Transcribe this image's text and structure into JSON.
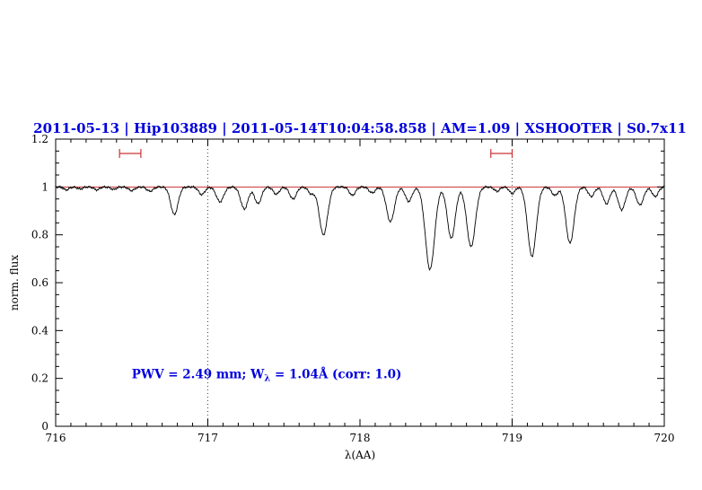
{
  "colors": {
    "accent_blue": "#0000dd",
    "line_red": "#cc3333",
    "spectrum_black": "#000000",
    "guide_gray": "#444444"
  },
  "chart_data": {
    "type": "line",
    "title": "2011-05-13 | Hip103889 | 2011-05-14T10:04:58.858 | AM=1.09 | XSHOOTER | S0.7x11",
    "xlabel": "λ(AA)",
    "ylabel": "norm. flux",
    "xlim": [
      716,
      720
    ],
    "ylim": [
      0,
      1.2
    ],
    "x_major_ticks": [
      716,
      717,
      718,
      719,
      720
    ],
    "x_tick_labels": [
      "716",
      "717",
      "718",
      "719",
      "720"
    ],
    "x_minor_step": 0.1,
    "y_major_ticks": [
      0,
      0.2,
      0.4,
      0.6,
      0.8,
      1.0,
      1.2
    ],
    "y_tick_labels": [
      "0",
      "0.2",
      "0.4",
      "0.6",
      "0.8",
      "1",
      "1.2"
    ],
    "y_minor_step": 0.05,
    "continuum_line": {
      "y": 1.0,
      "color": "#cc3333"
    },
    "guide_lines": {
      "x": [
        717,
        719
      ],
      "style": "dotted",
      "color": "#444444"
    },
    "range_markers": [
      {
        "x_start": 716.42,
        "x_end": 716.56,
        "y": 1.14,
        "color": "#cc3333"
      },
      {
        "x_start": 718.86,
        "x_end": 719.0,
        "y": 1.14,
        "color": "#cc3333"
      }
    ],
    "series": [
      {
        "name": "telluric absorption spectrum",
        "color": "#000000",
        "continuum": 1.0,
        "absorption_lines": [
          {
            "center": 716.07,
            "depth": 0.012,
            "sigma": 0.018
          },
          {
            "center": 716.16,
            "depth": 0.008,
            "sigma": 0.018
          },
          {
            "center": 716.27,
            "depth": 0.012,
            "sigma": 0.018
          },
          {
            "center": 716.38,
            "depth": 0.01,
            "sigma": 0.018
          },
          {
            "center": 716.5,
            "depth": 0.015,
            "sigma": 0.02
          },
          {
            "center": 716.62,
            "depth": 0.018,
            "sigma": 0.02
          },
          {
            "center": 716.78,
            "depth": 0.115,
            "sigma": 0.024
          },
          {
            "center": 716.96,
            "depth": 0.032,
            "sigma": 0.02
          },
          {
            "center": 717.08,
            "depth": 0.062,
            "sigma": 0.024
          },
          {
            "center": 717.24,
            "depth": 0.092,
            "sigma": 0.024
          },
          {
            "center": 717.33,
            "depth": 0.07,
            "sigma": 0.022
          },
          {
            "center": 717.45,
            "depth": 0.03,
            "sigma": 0.02
          },
          {
            "center": 717.56,
            "depth": 0.05,
            "sigma": 0.022
          },
          {
            "center": 717.68,
            "depth": 0.028,
            "sigma": 0.02
          },
          {
            "center": 717.76,
            "depth": 0.2,
            "sigma": 0.027
          },
          {
            "center": 717.95,
            "depth": 0.035,
            "sigma": 0.02
          },
          {
            "center": 718.08,
            "depth": 0.025,
            "sigma": 0.02
          },
          {
            "center": 718.2,
            "depth": 0.145,
            "sigma": 0.026
          },
          {
            "center": 718.32,
            "depth": 0.06,
            "sigma": 0.022
          },
          {
            "center": 718.46,
            "depth": 0.345,
            "sigma": 0.03
          },
          {
            "center": 718.6,
            "depth": 0.215,
            "sigma": 0.026
          },
          {
            "center": 718.73,
            "depth": 0.25,
            "sigma": 0.028
          },
          {
            "center": 718.9,
            "depth": 0.018,
            "sigma": 0.018
          },
          {
            "center": 719.0,
            "depth": 0.028,
            "sigma": 0.018
          },
          {
            "center": 719.13,
            "depth": 0.29,
            "sigma": 0.028
          },
          {
            "center": 719.28,
            "depth": 0.035,
            "sigma": 0.02
          },
          {
            "center": 719.38,
            "depth": 0.235,
            "sigma": 0.027
          },
          {
            "center": 719.52,
            "depth": 0.04,
            "sigma": 0.02
          },
          {
            "center": 719.62,
            "depth": 0.07,
            "sigma": 0.022
          },
          {
            "center": 719.72,
            "depth": 0.095,
            "sigma": 0.024
          },
          {
            "center": 719.84,
            "depth": 0.075,
            "sigma": 0.024
          },
          {
            "center": 719.94,
            "depth": 0.04,
            "sigma": 0.02
          }
        ]
      }
    ],
    "annotation": {
      "prefix": "PWV = 2.49 mm; W",
      "sub": "λ",
      "suffix": " = 1.04Å (corr: 1.0)",
      "x": 716.5,
      "y": 0.2,
      "color": "#0000dd"
    }
  }
}
